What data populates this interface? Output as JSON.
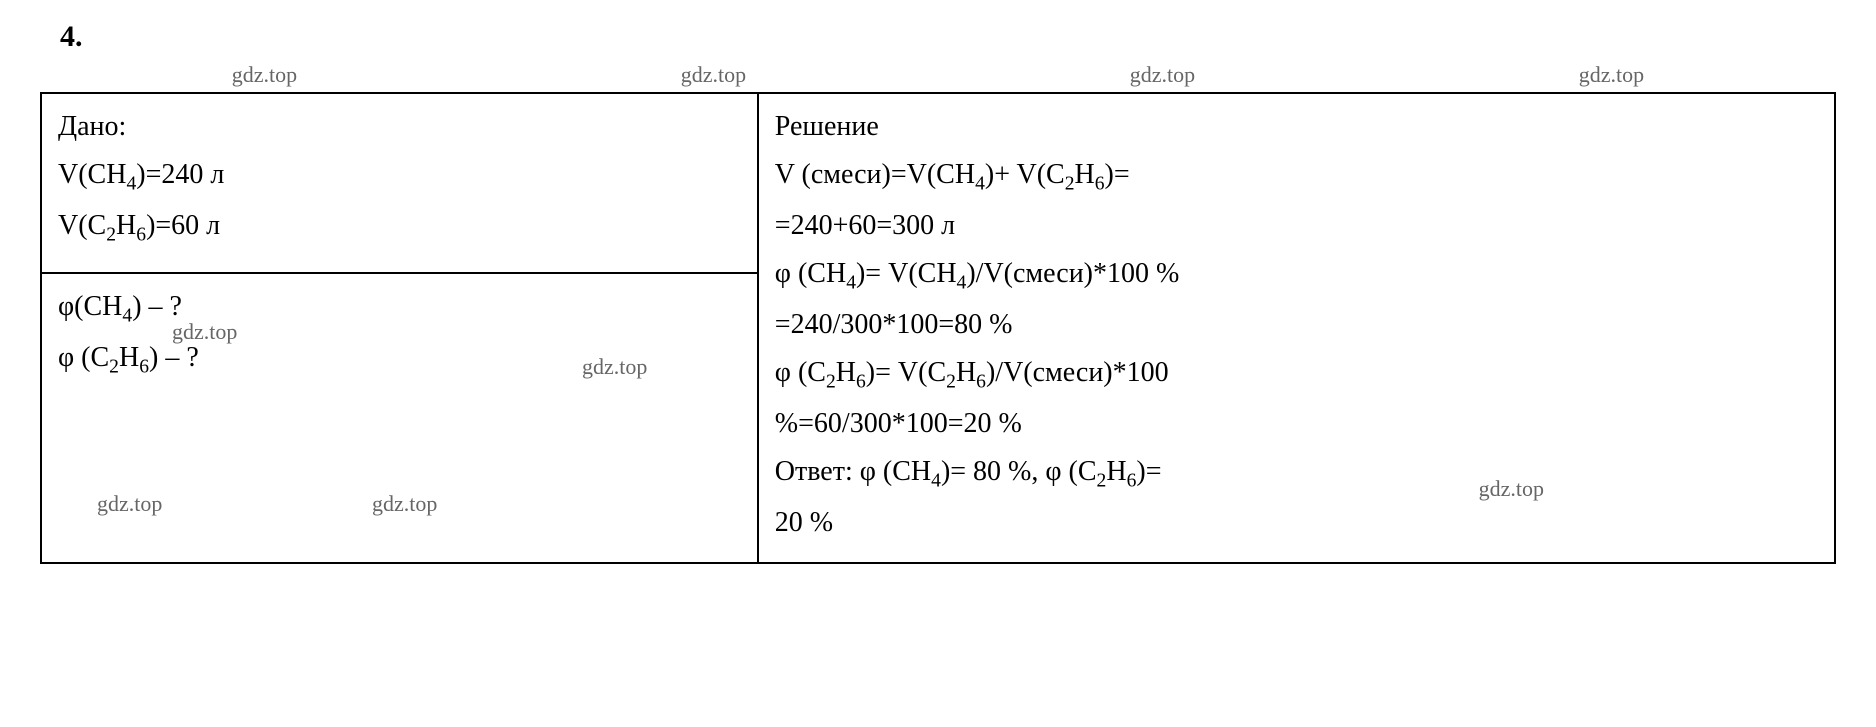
{
  "problem_number": "4.",
  "watermarks": {
    "text": "gdz.top",
    "color": "#666666",
    "fontsize": 22
  },
  "given": {
    "label": "Дано:",
    "line1_pre": "V(CH",
    "line1_sub1": "4",
    "line1_post": ")=240 л",
    "line2_pre": "V(C",
    "line2_sub1": "2",
    "line2_mid": "H",
    "line2_sub2": "6",
    "line2_post": ")=60 л"
  },
  "question": {
    "line1_pre": "φ(CH",
    "line1_sub": "4",
    "line1_post": ") – ?",
    "line2_pre": "φ (C",
    "line2_sub1": "2",
    "line2_mid": "H",
    "line2_sub2": "6",
    "line2_post": ") – ?"
  },
  "solution": {
    "label": "Решение",
    "line1_pre": "V (смеси)=V(CH",
    "line1_sub": "4",
    "line1_mid": ")+ V(C",
    "line1_sub2": "2",
    "line1_mid2": "H",
    "line1_sub3": "6",
    "line1_post": ")=",
    "line2": "=240+60=300 л",
    "line3_pre": "φ (CH",
    "line3_sub": "4",
    "line3_mid": ")= V(CH",
    "line3_sub2": "4",
    "line3_post": ")/V(смеси)*100 %",
    "line4": "=240/300*100=80 %",
    "line5_pre": "φ (C",
    "line5_sub1": "2",
    "line5_mid1": "H",
    "line5_sub2": "6",
    "line5_mid2": ")= V(C",
    "line5_sub3": "2",
    "line5_mid3": "H",
    "line5_sub4": "6",
    "line5_post": ")/V(смеси)*100",
    "line6": "%=60/300*100=20 %",
    "answer_pre": "Ответ: φ (CH",
    "answer_sub1": "4",
    "answer_mid1": ")= 80 %, φ (C",
    "answer_sub2": "2",
    "answer_mid2": "H",
    "answer_sub3": "6",
    "answer_post": ")=",
    "answer_line2": "20 %"
  },
  "styling": {
    "font_family": "Times New Roman",
    "font_size_main": 28,
    "font_size_number": 30,
    "background_color": "#ffffff",
    "text_color": "#000000",
    "border_color": "#000000",
    "border_width": 2,
    "left_column_width_percent": 40,
    "right_column_width_percent": 60
  }
}
